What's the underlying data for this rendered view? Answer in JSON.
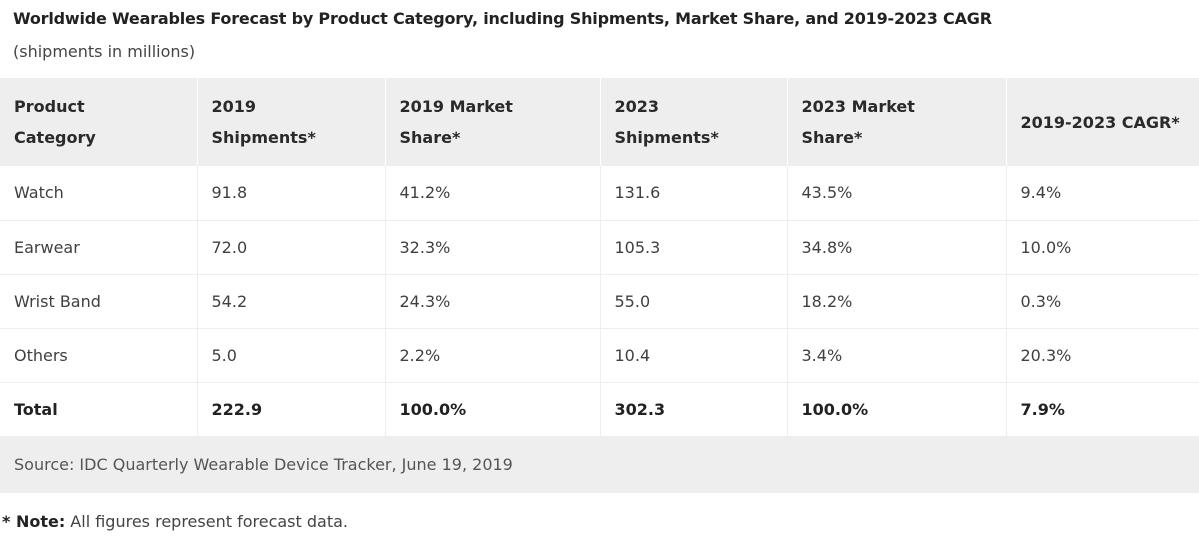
{
  "title": "Worldwide Wearables Forecast by Product Category, including Shipments, Market Share, and 2019-2023 CAGR",
  "subtitle": "(shipments in millions)",
  "table": {
    "headers": [
      [
        "Product",
        "Category"
      ],
      [
        "2019",
        "Shipments*"
      ],
      [
        "2019 Market",
        "Share*"
      ],
      [
        "2023",
        "Shipments*"
      ],
      [
        "2023 Market",
        "Share*"
      ],
      [
        "2019-2023 CAGR*",
        ""
      ]
    ],
    "rows": [
      [
        "Watch",
        "91.8",
        "41.2%",
        "131.6",
        "43.5%",
        "9.4%"
      ],
      [
        "Earwear",
        "72.0",
        "32.3%",
        "105.3",
        "34.8%",
        "10.0%"
      ],
      [
        "Wrist Band",
        "54.2",
        "24.3%",
        "55.0",
        "18.2%",
        "0.3%"
      ],
      [
        "Others",
        "5.0",
        "2.2%",
        "10.4",
        "3.4%",
        "20.3%"
      ]
    ],
    "total": [
      "Total",
      "222.9",
      "100.0%",
      "302.3",
      "100.0%",
      "7.9%"
    ],
    "source": "Source: IDC Quarterly Wearable Device Tracker, June 19, 2019"
  },
  "note": {
    "label": "* Note:",
    "text": " All figures represent forecast data."
  },
  "colors": {
    "header_bg": "#eeeeee",
    "border": "#eeeeee",
    "text": "#404040"
  }
}
